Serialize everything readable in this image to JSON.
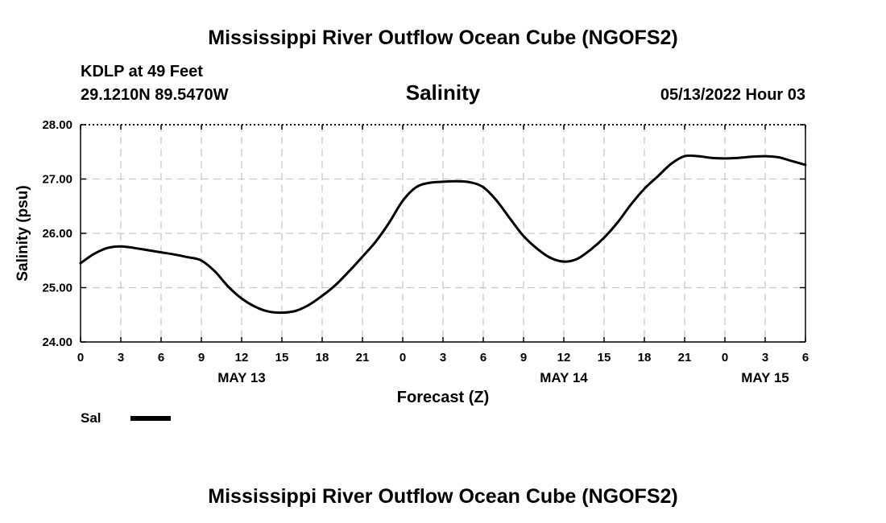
{
  "header": {
    "title": "Mississippi River Outflow Ocean Cube (NGOFS2)",
    "station": "KDLP at 49 Feet",
    "coords": "29.1210N  89.5470W",
    "variable": "Salinity",
    "datetime": "05/13/2022 Hour 03"
  },
  "footer": {
    "title": "Mississippi River Outflow Ocean Cube (NGOFS2)"
  },
  "chart_data": {
    "type": "line",
    "title": "Salinity",
    "xlabel": "Forecast (Z)",
    "ylabel": "Salinity (psu)",
    "ylim": [
      24.0,
      28.0
    ],
    "xlim": [
      0,
      54
    ],
    "y_ticks": [
      "24.00",
      "25.00",
      "26.00",
      "27.00",
      "28.00"
    ],
    "x_ticks": [
      {
        "h": 0,
        "label": "0"
      },
      {
        "h": 3,
        "label": "3"
      },
      {
        "h": 6,
        "label": "6"
      },
      {
        "h": 9,
        "label": "9"
      },
      {
        "h": 12,
        "label": "12"
      },
      {
        "h": 15,
        "label": "15"
      },
      {
        "h": 18,
        "label": "18"
      },
      {
        "h": 21,
        "label": "21"
      },
      {
        "h": 24,
        "label": "0"
      },
      {
        "h": 27,
        "label": "3"
      },
      {
        "h": 30,
        "label": "6"
      },
      {
        "h": 33,
        "label": "9"
      },
      {
        "h": 36,
        "label": "12"
      },
      {
        "h": 39,
        "label": "15"
      },
      {
        "h": 42,
        "label": "18"
      },
      {
        "h": 45,
        "label": "21"
      },
      {
        "h": 48,
        "label": "0"
      },
      {
        "h": 51,
        "label": "3"
      },
      {
        "h": 54,
        "label": "6"
      }
    ],
    "day_labels": [
      {
        "h": 12,
        "label": "MAY 13"
      },
      {
        "h": 36,
        "label": "MAY 14"
      },
      {
        "h": 51,
        "label": "MAY 15"
      }
    ],
    "grid": true,
    "legend_position": "bottom-left",
    "series": [
      {
        "name": "Sal",
        "color": "#000000",
        "x": [
          0,
          1,
          2,
          3,
          4,
          5,
          6,
          7,
          8,
          9,
          10,
          11,
          12,
          13,
          14,
          15,
          16,
          17,
          18,
          19,
          20,
          21,
          22,
          23,
          24,
          25,
          26,
          27,
          28,
          29,
          30,
          31,
          32,
          33,
          34,
          35,
          36,
          37,
          38,
          39,
          40,
          41,
          42,
          43,
          44,
          45,
          46,
          47,
          48,
          49,
          50,
          51,
          52,
          53,
          54
        ],
        "values": [
          25.45,
          25.62,
          25.73,
          25.76,
          25.73,
          25.69,
          25.65,
          25.61,
          25.56,
          25.5,
          25.3,
          25.02,
          24.8,
          24.65,
          24.56,
          24.54,
          24.57,
          24.68,
          24.85,
          25.05,
          25.3,
          25.57,
          25.85,
          26.2,
          26.6,
          26.85,
          26.93,
          26.95,
          26.96,
          26.94,
          26.85,
          26.6,
          26.27,
          25.95,
          25.72,
          25.55,
          25.48,
          25.53,
          25.7,
          25.92,
          26.2,
          26.53,
          26.82,
          27.05,
          27.28,
          27.42,
          27.42,
          27.39,
          27.38,
          27.39,
          27.41,
          27.42,
          27.4,
          27.33,
          27.26
        ]
      }
    ]
  }
}
